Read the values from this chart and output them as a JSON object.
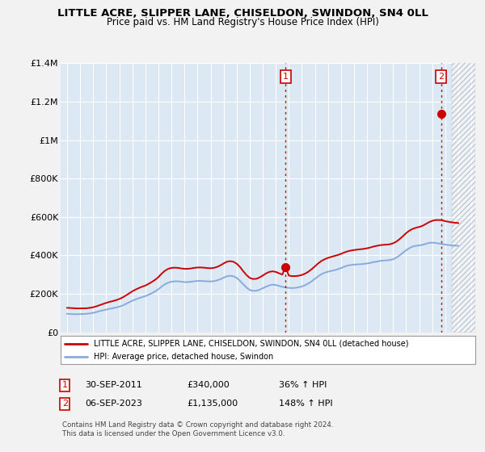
{
  "title": "LITTLE ACRE, SLIPPER LANE, CHISELDON, SWINDON, SN4 0LL",
  "subtitle": "Price paid vs. HM Land Registry's House Price Index (HPI)",
  "ylim": [
    0,
    1400000
  ],
  "xlim_start": 1994.5,
  "xlim_end": 2026.3,
  "yticks": [
    0,
    200000,
    400000,
    600000,
    800000,
    1000000,
    1200000,
    1400000
  ],
  "ytick_labels": [
    "£0",
    "£200K",
    "£400K",
    "£600K",
    "£800K",
    "£1M",
    "£1.2M",
    "£1.4M"
  ],
  "fig_bg_color": "#f2f2f2",
  "plot_bg_color": "#dce9f5",
  "grid_color": "#ffffff",
  "red_line_color": "#cc0000",
  "blue_line_color": "#88aadd",
  "marker1_x": 2011.75,
  "marker1_y": 340000,
  "marker2_x": 2023.67,
  "marker2_y": 1135000,
  "hatch_start": 2024.5,
  "legend_label1": "LITTLE ACRE, SLIPPER LANE, CHISELDON, SWINDON, SN4 0LL (detached house)",
  "legend_label2": "HPI: Average price, detached house, Swindon",
  "marker1_date": "30-SEP-2011",
  "marker1_price": "£340,000",
  "marker1_hpi": "36% ↑ HPI",
  "marker2_date": "06-SEP-2023",
  "marker2_price": "£1,135,000",
  "marker2_hpi": "148% ↑ HPI",
  "footer1": "Contains HM Land Registry data © Crown copyright and database right 2024.",
  "footer2": "This data is licensed under the Open Government Licence v3.0.",
  "red_line": [
    [
      1995.0,
      127000
    ],
    [
      1995.25,
      126000
    ],
    [
      1995.5,
      125000
    ],
    [
      1995.75,
      124000
    ],
    [
      1996.0,
      124000
    ],
    [
      1996.25,
      124500
    ],
    [
      1996.5,
      125000
    ],
    [
      1996.75,
      127000
    ],
    [
      1997.0,
      130000
    ],
    [
      1997.25,
      135000
    ],
    [
      1997.5,
      141000
    ],
    [
      1997.75,
      147000
    ],
    [
      1998.0,
      153000
    ],
    [
      1998.25,
      158000
    ],
    [
      1998.5,
      162000
    ],
    [
      1998.75,
      167000
    ],
    [
      1999.0,
      173000
    ],
    [
      1999.25,
      181000
    ],
    [
      1999.5,
      191000
    ],
    [
      1999.75,
      202000
    ],
    [
      2000.0,
      213000
    ],
    [
      2000.25,
      222000
    ],
    [
      2000.5,
      230000
    ],
    [
      2000.75,
      237000
    ],
    [
      2001.0,
      243000
    ],
    [
      2001.25,
      252000
    ],
    [
      2001.5,
      262000
    ],
    [
      2001.75,
      273000
    ],
    [
      2002.0,
      287000
    ],
    [
      2002.25,
      305000
    ],
    [
      2002.5,
      320000
    ],
    [
      2002.75,
      330000
    ],
    [
      2003.0,
      335000
    ],
    [
      2003.25,
      336000
    ],
    [
      2003.5,
      335000
    ],
    [
      2003.75,
      332000
    ],
    [
      2004.0,
      330000
    ],
    [
      2004.25,
      330000
    ],
    [
      2004.5,
      332000
    ],
    [
      2004.75,
      335000
    ],
    [
      2005.0,
      337000
    ],
    [
      2005.25,
      337000
    ],
    [
      2005.5,
      336000
    ],
    [
      2005.75,
      334000
    ],
    [
      2006.0,
      333000
    ],
    [
      2006.25,
      335000
    ],
    [
      2006.5,
      340000
    ],
    [
      2006.75,
      348000
    ],
    [
      2007.0,
      358000
    ],
    [
      2007.25,
      367000
    ],
    [
      2007.5,
      370000
    ],
    [
      2007.75,
      367000
    ],
    [
      2008.0,
      357000
    ],
    [
      2008.25,
      340000
    ],
    [
      2008.5,
      318000
    ],
    [
      2008.75,
      298000
    ],
    [
      2009.0,
      283000
    ],
    [
      2009.25,
      277000
    ],
    [
      2009.5,
      278000
    ],
    [
      2009.75,
      285000
    ],
    [
      2010.0,
      295000
    ],
    [
      2010.25,
      306000
    ],
    [
      2010.5,
      314000
    ],
    [
      2010.75,
      317000
    ],
    [
      2011.0,
      314000
    ],
    [
      2011.25,
      307000
    ],
    [
      2011.5,
      300000
    ],
    [
      2011.75,
      340000
    ],
    [
      2012.0,
      295000
    ],
    [
      2012.25,
      292000
    ],
    [
      2012.5,
      292000
    ],
    [
      2012.75,
      294000
    ],
    [
      2013.0,
      298000
    ],
    [
      2013.25,
      305000
    ],
    [
      2013.5,
      315000
    ],
    [
      2013.75,
      328000
    ],
    [
      2014.0,
      343000
    ],
    [
      2014.25,
      358000
    ],
    [
      2014.5,
      371000
    ],
    [
      2014.75,
      380000
    ],
    [
      2015.0,
      387000
    ],
    [
      2015.25,
      392000
    ],
    [
      2015.5,
      397000
    ],
    [
      2015.75,
      402000
    ],
    [
      2016.0,
      408000
    ],
    [
      2016.25,
      415000
    ],
    [
      2016.5,
      421000
    ],
    [
      2016.75,
      425000
    ],
    [
      2017.0,
      428000
    ],
    [
      2017.25,
      430000
    ],
    [
      2017.5,
      432000
    ],
    [
      2017.75,
      434000
    ],
    [
      2018.0,
      437000
    ],
    [
      2018.25,
      441000
    ],
    [
      2018.5,
      446000
    ],
    [
      2018.75,
      450000
    ],
    [
      2019.0,
      453000
    ],
    [
      2019.25,
      455000
    ],
    [
      2019.5,
      456000
    ],
    [
      2019.75,
      458000
    ],
    [
      2020.0,
      463000
    ],
    [
      2020.25,
      472000
    ],
    [
      2020.5,
      485000
    ],
    [
      2020.75,
      500000
    ],
    [
      2021.0,
      516000
    ],
    [
      2021.25,
      529000
    ],
    [
      2021.5,
      538000
    ],
    [
      2021.75,
      544000
    ],
    [
      2022.0,
      548000
    ],
    [
      2022.25,
      554000
    ],
    [
      2022.5,
      563000
    ],
    [
      2022.75,
      573000
    ],
    [
      2023.0,
      580000
    ],
    [
      2023.25,
      584000
    ],
    [
      2023.5,
      584000
    ],
    [
      2023.67,
      584000
    ],
    [
      2024.0,
      578000
    ],
    [
      2024.5,
      572000
    ],
    [
      2025.0,
      568000
    ]
  ],
  "blue_line": [
    [
      1995.0,
      96000
    ],
    [
      1995.25,
      95000
    ],
    [
      1995.5,
      94000
    ],
    [
      1995.75,
      94000
    ],
    [
      1996.0,
      94500
    ],
    [
      1996.25,
      95000
    ],
    [
      1996.5,
      96000
    ],
    [
      1996.75,
      98000
    ],
    [
      1997.0,
      101000
    ],
    [
      1997.25,
      105000
    ],
    [
      1997.5,
      110000
    ],
    [
      1997.75,
      114000
    ],
    [
      1998.0,
      118000
    ],
    [
      1998.25,
      122000
    ],
    [
      1998.5,
      125000
    ],
    [
      1998.75,
      129000
    ],
    [
      1999.0,
      133000
    ],
    [
      1999.25,
      139000
    ],
    [
      1999.5,
      147000
    ],
    [
      1999.75,
      156000
    ],
    [
      2000.0,
      164000
    ],
    [
      2000.25,
      171000
    ],
    [
      2000.5,
      177000
    ],
    [
      2000.75,
      183000
    ],
    [
      2001.0,
      188000
    ],
    [
      2001.25,
      195000
    ],
    [
      2001.5,
      203000
    ],
    [
      2001.75,
      213000
    ],
    [
      2002.0,
      224000
    ],
    [
      2002.25,
      238000
    ],
    [
      2002.5,
      250000
    ],
    [
      2002.75,
      258000
    ],
    [
      2003.0,
      263000
    ],
    [
      2003.25,
      265000
    ],
    [
      2003.5,
      265000
    ],
    [
      2003.75,
      263000
    ],
    [
      2004.0,
      261000
    ],
    [
      2004.25,
      261000
    ],
    [
      2004.5,
      263000
    ],
    [
      2004.75,
      265000
    ],
    [
      2005.0,
      267000
    ],
    [
      2005.25,
      267000
    ],
    [
      2005.5,
      266000
    ],
    [
      2005.75,
      265000
    ],
    [
      2006.0,
      264000
    ],
    [
      2006.25,
      266000
    ],
    [
      2006.5,
      270000
    ],
    [
      2006.75,
      276000
    ],
    [
      2007.0,
      284000
    ],
    [
      2007.25,
      291000
    ],
    [
      2007.5,
      294000
    ],
    [
      2007.75,
      291000
    ],
    [
      2008.0,
      283000
    ],
    [
      2008.25,
      268000
    ],
    [
      2008.5,
      250000
    ],
    [
      2008.75,
      233000
    ],
    [
      2009.0,
      220000
    ],
    [
      2009.25,
      215000
    ],
    [
      2009.5,
      216000
    ],
    [
      2009.75,
      221000
    ],
    [
      2010.0,
      229000
    ],
    [
      2010.25,
      237000
    ],
    [
      2010.5,
      244000
    ],
    [
      2010.75,
      248000
    ],
    [
      2011.0,
      246000
    ],
    [
      2011.25,
      241000
    ],
    [
      2011.5,
      236000
    ],
    [
      2011.75,
      233000
    ],
    [
      2012.0,
      231000
    ],
    [
      2012.25,
      230000
    ],
    [
      2012.5,
      231000
    ],
    [
      2012.75,
      234000
    ],
    [
      2013.0,
      238000
    ],
    [
      2013.25,
      245000
    ],
    [
      2013.5,
      254000
    ],
    [
      2013.75,
      265000
    ],
    [
      2014.0,
      278000
    ],
    [
      2014.25,
      291000
    ],
    [
      2014.5,
      302000
    ],
    [
      2014.75,
      310000
    ],
    [
      2015.0,
      315000
    ],
    [
      2015.25,
      319000
    ],
    [
      2015.5,
      323000
    ],
    [
      2015.75,
      328000
    ],
    [
      2016.0,
      334000
    ],
    [
      2016.25,
      341000
    ],
    [
      2016.5,
      347000
    ],
    [
      2016.75,
      350000
    ],
    [
      2017.0,
      352000
    ],
    [
      2017.25,
      353000
    ],
    [
      2017.5,
      354000
    ],
    [
      2017.75,
      356000
    ],
    [
      2018.0,
      358000
    ],
    [
      2018.25,
      361000
    ],
    [
      2018.5,
      365000
    ],
    [
      2018.75,
      368000
    ],
    [
      2019.0,
      371000
    ],
    [
      2019.25,
      373000
    ],
    [
      2019.5,
      374000
    ],
    [
      2019.75,
      376000
    ],
    [
      2020.0,
      380000
    ],
    [
      2020.25,
      388000
    ],
    [
      2020.5,
      400000
    ],
    [
      2020.75,
      414000
    ],
    [
      2021.0,
      427000
    ],
    [
      2021.25,
      438000
    ],
    [
      2021.5,
      446000
    ],
    [
      2021.75,
      450000
    ],
    [
      2022.0,
      452000
    ],
    [
      2022.25,
      455000
    ],
    [
      2022.5,
      460000
    ],
    [
      2022.75,
      465000
    ],
    [
      2023.0,
      466000
    ],
    [
      2023.25,
      465000
    ],
    [
      2023.5,
      462000
    ],
    [
      2023.67,
      460000
    ],
    [
      2024.0,
      456000
    ],
    [
      2024.5,
      452000
    ],
    [
      2025.0,
      450000
    ]
  ]
}
